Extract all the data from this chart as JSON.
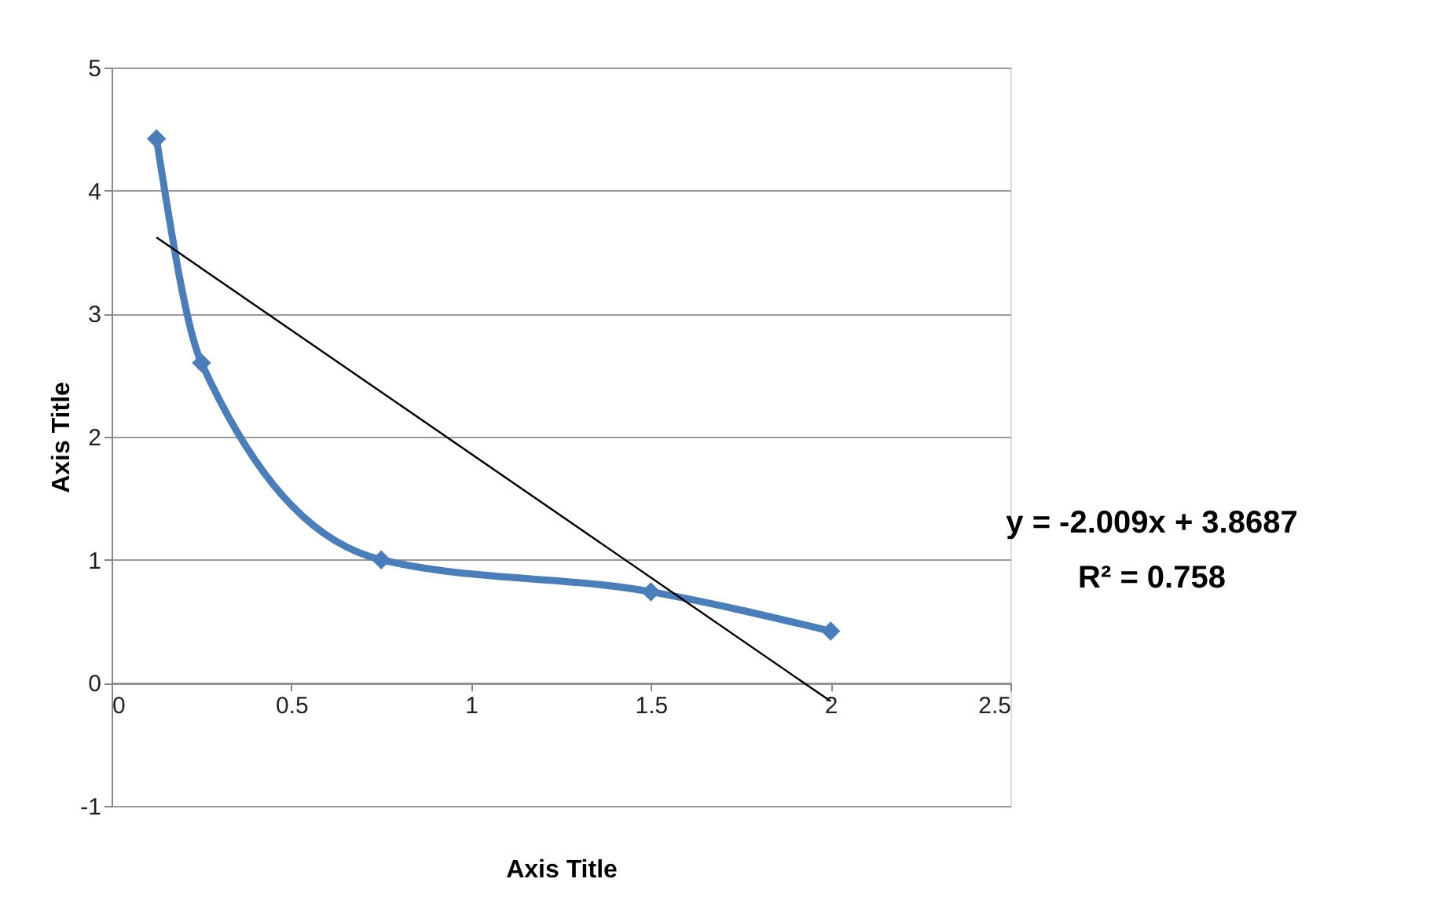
{
  "chart_data": {
    "type": "line",
    "xlabel": "Axis Title",
    "ylabel": "Axis Title",
    "x": [
      0.125,
      0.25,
      0.75,
      1.5,
      2
    ],
    "series": [
      {
        "color": "#4a7ebb",
        "values": [
          4.42,
          2.6,
          1.0,
          0.74,
          0.42
        ],
        "marker": "diamond"
      },
      {
        "type": "line",
        "color": "#000000",
        "x": [
          0.125,
          2
        ],
        "values": [
          3.62,
          -0.15
        ],
        "marker": "none"
      }
    ],
    "annotations": [
      "y = -2.009x + 3.8687",
      "R² = 0.758"
    ],
    "xlim": [
      0,
      2.5
    ],
    "xticks": [
      0,
      0.5,
      1,
      1.5,
      2,
      2.5
    ],
    "ylim": [
      -1,
      5
    ],
    "yticks": [
      -1,
      0,
      1,
      2,
      3,
      4,
      5
    ],
    "grid": "y",
    "legend": false
  }
}
